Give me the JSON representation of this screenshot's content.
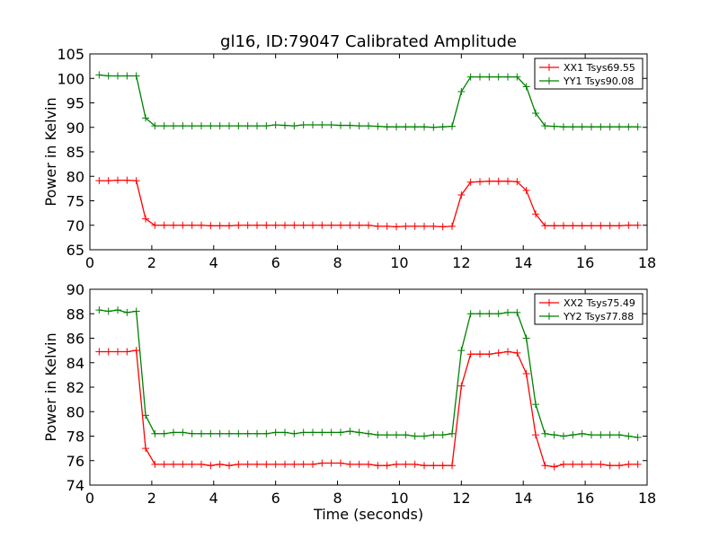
{
  "figure": {
    "title": "gl16, ID:79047 Calibrated Amplitude"
  },
  "chart_data": [
    {
      "type": "line",
      "xlabel": "",
      "ylabel": "Power in Kelvin",
      "xlim": [
        0,
        18
      ],
      "ylim": [
        65,
        105
      ],
      "xticks": [
        0,
        2,
        4,
        6,
        8,
        10,
        12,
        14,
        16,
        18
      ],
      "yticks": [
        65,
        70,
        75,
        80,
        85,
        90,
        95,
        100,
        105
      ],
      "grid": false,
      "legend_position": "top-right",
      "x": [
        0.3,
        0.6,
        0.9,
        1.2,
        1.5,
        1.8,
        2.1,
        2.4,
        2.7,
        3.0,
        3.3,
        3.6,
        3.9,
        4.2,
        4.5,
        4.8,
        5.1,
        5.4,
        5.7,
        6.0,
        6.3,
        6.6,
        6.9,
        7.2,
        7.5,
        7.8,
        8.1,
        8.4,
        8.7,
        9.0,
        9.3,
        9.6,
        9.9,
        10.2,
        10.5,
        10.8,
        11.1,
        11.4,
        11.7,
        12.0,
        12.3,
        12.6,
        12.9,
        13.2,
        13.5,
        13.8,
        14.1,
        14.4,
        14.7,
        15.0,
        15.3,
        15.6,
        15.9,
        16.2,
        16.5,
        16.8,
        17.1,
        17.4,
        17.7
      ],
      "series": [
        {
          "name": "XX1 Tsys69.55",
          "color": "#ff0000",
          "values": [
            79.1,
            79.1,
            79.2,
            79.2,
            79.1,
            71.3,
            70.0,
            70.0,
            70.0,
            70.0,
            70.0,
            70.0,
            69.9,
            69.9,
            69.9,
            70.0,
            70.0,
            70.0,
            70.0,
            70.0,
            70.0,
            70.0,
            70.0,
            70.0,
            70.0,
            70.0,
            70.0,
            70.0,
            70.0,
            70.0,
            69.8,
            69.8,
            69.7,
            69.8,
            69.8,
            69.8,
            69.8,
            69.7,
            69.8,
            76.2,
            78.8,
            78.9,
            79.0,
            79.0,
            79.0,
            78.9,
            77.1,
            72.3,
            69.9,
            69.9,
            69.9,
            69.9,
            69.9,
            69.9,
            69.9,
            69.9,
            69.9,
            70.0,
            70.0
          ]
        },
        {
          "name": "YY1 Tsys90.08",
          "color": "#008000",
          "values": [
            100.7,
            100.5,
            100.5,
            100.5,
            100.5,
            91.9,
            90.3,
            90.3,
            90.3,
            90.3,
            90.3,
            90.3,
            90.3,
            90.3,
            90.3,
            90.3,
            90.3,
            90.3,
            90.3,
            90.5,
            90.4,
            90.3,
            90.5,
            90.5,
            90.5,
            90.5,
            90.4,
            90.4,
            90.3,
            90.3,
            90.2,
            90.1,
            90.1,
            90.1,
            90.1,
            90.1,
            90.0,
            90.1,
            90.2,
            97.3,
            100.3,
            100.3,
            100.3,
            100.3,
            100.3,
            100.3,
            98.3,
            92.9,
            90.3,
            90.2,
            90.1,
            90.1,
            90.1,
            90.1,
            90.1,
            90.1,
            90.1,
            90.1,
            90.1
          ]
        }
      ]
    },
    {
      "type": "line",
      "xlabel": "Time (seconds)",
      "ylabel": "Power in Kelvin",
      "xlim": [
        0,
        18
      ],
      "ylim": [
        74,
        90
      ],
      "xticks": [
        0,
        2,
        4,
        6,
        8,
        10,
        12,
        14,
        16,
        18
      ],
      "yticks": [
        74,
        76,
        78,
        80,
        82,
        84,
        86,
        88,
        90
      ],
      "grid": false,
      "legend_position": "top-right",
      "x": [
        0.3,
        0.6,
        0.9,
        1.2,
        1.5,
        1.8,
        2.1,
        2.4,
        2.7,
        3.0,
        3.3,
        3.6,
        3.9,
        4.2,
        4.5,
        4.8,
        5.1,
        5.4,
        5.7,
        6.0,
        6.3,
        6.6,
        6.9,
        7.2,
        7.5,
        7.8,
        8.1,
        8.4,
        8.7,
        9.0,
        9.3,
        9.6,
        9.9,
        10.2,
        10.5,
        10.8,
        11.1,
        11.4,
        11.7,
        12.0,
        12.3,
        12.6,
        12.9,
        13.2,
        13.5,
        13.8,
        14.1,
        14.4,
        14.7,
        15.0,
        15.3,
        15.6,
        15.9,
        16.2,
        16.5,
        16.8,
        17.1,
        17.4,
        17.7
      ],
      "series": [
        {
          "name": "XX2 Tsys75.49",
          "color": "#ff0000",
          "values": [
            84.9,
            84.9,
            84.9,
            84.9,
            85.0,
            77.0,
            75.7,
            75.7,
            75.7,
            75.7,
            75.7,
            75.7,
            75.6,
            75.7,
            75.6,
            75.7,
            75.7,
            75.7,
            75.7,
            75.7,
            75.7,
            75.7,
            75.7,
            75.7,
            75.8,
            75.8,
            75.8,
            75.7,
            75.7,
            75.7,
            75.6,
            75.6,
            75.7,
            75.7,
            75.7,
            75.6,
            75.6,
            75.6,
            75.6,
            82.1,
            84.7,
            84.7,
            84.7,
            84.8,
            84.9,
            84.8,
            83.1,
            78.1,
            75.6,
            75.5,
            75.7,
            75.7,
            75.7,
            75.7,
            75.7,
            75.6,
            75.6,
            75.7,
            75.7
          ]
        },
        {
          "name": "YY2 Tsys77.88",
          "color": "#008000",
          "values": [
            88.3,
            88.2,
            88.3,
            88.1,
            88.2,
            79.7,
            78.2,
            78.2,
            78.3,
            78.3,
            78.2,
            78.2,
            78.2,
            78.2,
            78.2,
            78.2,
            78.2,
            78.2,
            78.2,
            78.3,
            78.3,
            78.2,
            78.3,
            78.3,
            78.3,
            78.3,
            78.3,
            78.4,
            78.3,
            78.2,
            78.1,
            78.1,
            78.1,
            78.1,
            78.0,
            78.0,
            78.1,
            78.1,
            78.2,
            85.0,
            88.0,
            88.0,
            88.0,
            88.0,
            88.1,
            88.1,
            86.0,
            80.6,
            78.2,
            78.1,
            78.0,
            78.1,
            78.2,
            78.1,
            78.1,
            78.1,
            78.1,
            78.0,
            77.9
          ]
        }
      ]
    }
  ]
}
